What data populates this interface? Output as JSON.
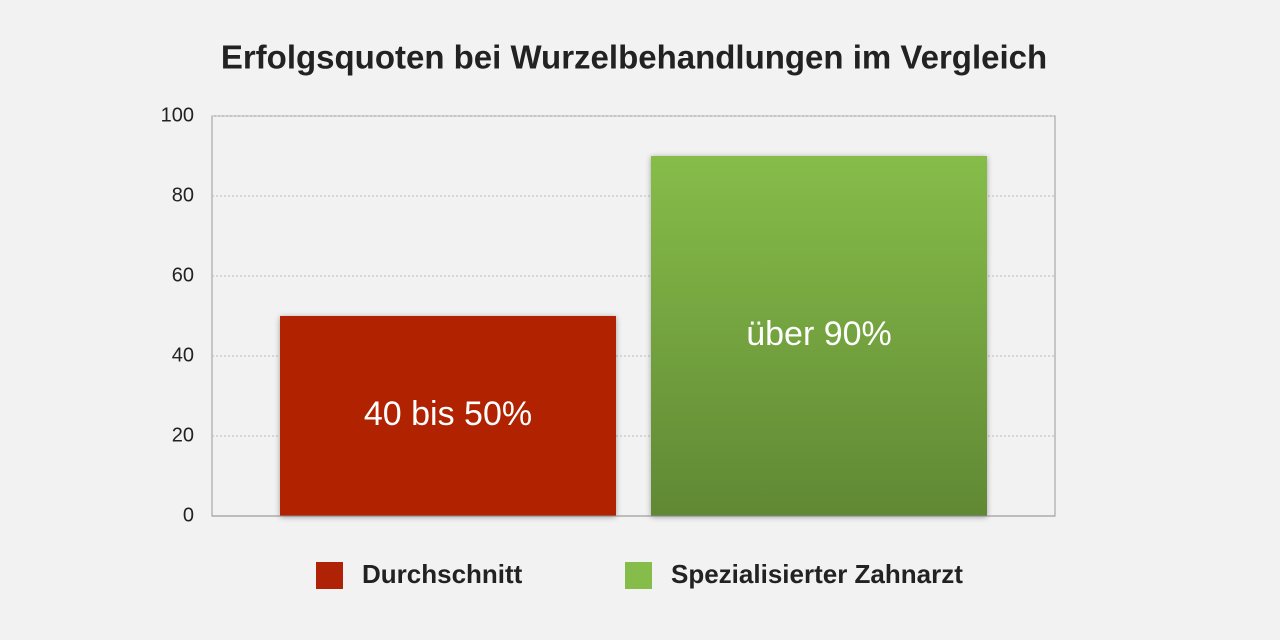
{
  "chart_data": {
    "type": "bar",
    "title": "Erfolgsquoten bei Wurzelbehandlungen im Vergleich",
    "categories": [
      null
    ],
    "series": [
      {
        "name": "Durchschnitt",
        "color": "#b02205",
        "values": [
          50
        ],
        "value_labels": [
          "40 bis 50%"
        ]
      },
      {
        "name": "Spezialisierter Zahnarzt",
        "color": "#86bd4a",
        "values": [
          90
        ],
        "value_labels": [
          "über 90%"
        ]
      }
    ],
    "ylim": [
      0,
      100
    ],
    "yticks": [
      0,
      20,
      40,
      60,
      80,
      100
    ],
    "grid": true,
    "legend": "bottom"
  }
}
